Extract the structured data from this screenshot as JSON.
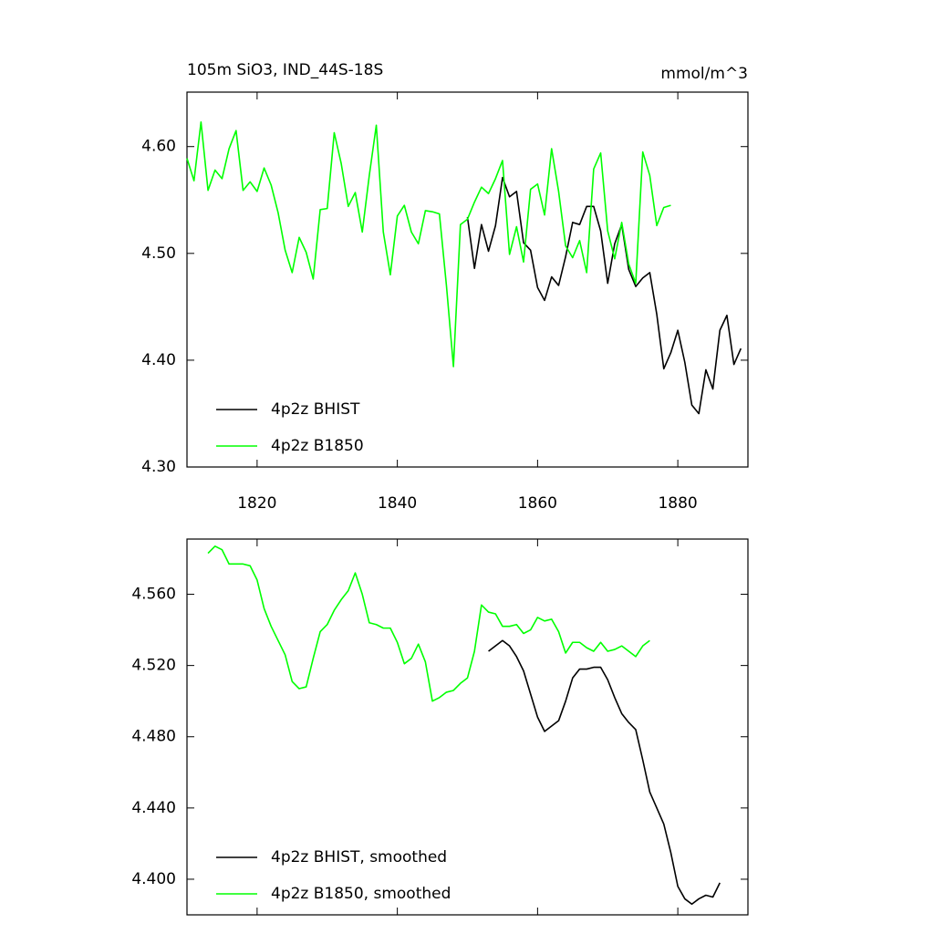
{
  "chart_data": [
    {
      "type": "line",
      "title": "105m SiO3, IND_44S-18S",
      "units": "mmol/m^3",
      "x": [
        1810,
        1811,
        1812,
        1813,
        1814,
        1815,
        1816,
        1817,
        1818,
        1819,
        1820,
        1821,
        1822,
        1823,
        1824,
        1825,
        1826,
        1827,
        1828,
        1829,
        1830,
        1831,
        1832,
        1833,
        1834,
        1835,
        1836,
        1837,
        1838,
        1839,
        1840,
        1841,
        1842,
        1843,
        1844,
        1845,
        1846,
        1847,
        1848,
        1849,
        1850,
        1851,
        1852,
        1853,
        1854,
        1855,
        1856,
        1857,
        1858,
        1859,
        1860,
        1861,
        1862,
        1863,
        1864,
        1865,
        1866,
        1867,
        1868,
        1869,
        1870,
        1871,
        1872,
        1873,
        1874,
        1875,
        1876,
        1877,
        1878,
        1879,
        1880,
        1881,
        1882,
        1883,
        1884,
        1885,
        1886,
        1887,
        1888,
        1889
      ],
      "series": [
        {
          "name": "4p2z BHIST",
          "color": "#000000",
          "values": [
            null,
            null,
            null,
            null,
            null,
            null,
            null,
            null,
            null,
            null,
            null,
            null,
            null,
            null,
            null,
            null,
            null,
            null,
            null,
            null,
            null,
            null,
            null,
            null,
            null,
            null,
            null,
            null,
            null,
            null,
            null,
            null,
            null,
            null,
            null,
            null,
            null,
            null,
            null,
            null,
            4.534,
            4.486,
            4.527,
            4.502,
            4.526,
            4.571,
            4.553,
            4.558,
            4.51,
            4.503,
            4.468,
            4.456,
            4.478,
            4.47,
            4.497,
            4.529,
            4.527,
            4.544,
            4.544,
            4.521,
            4.472,
            4.509,
            4.527,
            4.485,
            4.469,
            4.477,
            4.482,
            4.443,
            4.392,
            4.407,
            4.428,
            4.398,
            4.358,
            4.35,
            4.391,
            4.373,
            4.428,
            4.442,
            4.396,
            4.411
          ]
        },
        {
          "name": "4p2z B1850",
          "color": "#00ff00",
          "values": [
            4.589,
            4.568,
            4.623,
            4.559,
            4.578,
            4.57,
            4.598,
            4.615,
            4.559,
            4.567,
            4.558,
            4.58,
            4.564,
            4.538,
            4.503,
            4.482,
            4.515,
            4.501,
            4.476,
            4.541,
            4.542,
            4.613,
            4.584,
            4.544,
            4.557,
            4.52,
            4.573,
            4.62,
            4.52,
            4.48,
            4.535,
            4.545,
            4.52,
            4.509,
            4.54,
            4.539,
            4.537,
            4.47,
            4.394,
            4.527,
            4.532,
            4.548,
            4.562,
            4.556,
            4.57,
            4.587,
            4.499,
            4.525,
            4.492,
            4.56,
            4.565,
            4.536,
            4.598,
            4.558,
            4.507,
            4.496,
            4.512,
            4.482,
            4.579,
            4.594,
            4.521,
            4.495,
            4.529,
            4.49,
            4.472,
            4.595,
            4.573,
            4.526,
            4.543,
            4.545,
            null,
            null,
            null,
            null,
            null,
            null,
            null,
            null,
            null,
            null
          ]
        }
      ],
      "xlim": [
        1810,
        1890
      ],
      "xticks": [
        1820,
        1840,
        1860,
        1880
      ],
      "ylim": [
        4.3,
        4.651
      ],
      "yticks": [
        {
          "value": 4.3,
          "label": "4.30"
        },
        {
          "value": 4.4,
          "label": "4.40"
        },
        {
          "value": 4.5,
          "label": "4.50"
        },
        {
          "value": 4.6,
          "label": "4.60"
        }
      ],
      "legend": "lower left"
    },
    {
      "type": "line",
      "x": [
        1813,
        1814,
        1815,
        1816,
        1817,
        1818,
        1819,
        1820,
        1821,
        1822,
        1823,
        1824,
        1825,
        1826,
        1827,
        1828,
        1829,
        1830,
        1831,
        1832,
        1833,
        1834,
        1835,
        1836,
        1837,
        1838,
        1839,
        1840,
        1841,
        1842,
        1843,
        1844,
        1845,
        1846,
        1847,
        1848,
        1849,
        1850,
        1851,
        1852,
        1853,
        1854,
        1855,
        1856,
        1857,
        1858,
        1859,
        1860,
        1861,
        1862,
        1863,
        1864,
        1865,
        1866,
        1867,
        1868,
        1869,
        1870,
        1871,
        1872,
        1873,
        1874,
        1875,
        1876,
        1877,
        1878,
        1879,
        1880,
        1881,
        1882,
        1883,
        1884,
        1885,
        1886
      ],
      "series": [
        {
          "name": "4p2z BHIST, smoothed",
          "color": "#000000",
          "values": [
            null,
            null,
            null,
            null,
            null,
            null,
            null,
            null,
            null,
            null,
            null,
            null,
            null,
            null,
            null,
            null,
            null,
            null,
            null,
            null,
            null,
            null,
            null,
            null,
            null,
            null,
            null,
            null,
            null,
            null,
            null,
            null,
            null,
            null,
            null,
            null,
            null,
            null,
            null,
            null,
            4.528,
            4.531,
            4.534,
            4.531,
            4.525,
            4.517,
            4.504,
            4.491,
            4.483,
            4.486,
            4.489,
            4.5,
            4.513,
            4.518,
            4.518,
            4.519,
            4.519,
            4.512,
            4.502,
            4.493,
            4.488,
            4.484,
            4.467,
            4.449,
            4.44,
            4.431,
            4.415,
            4.396,
            4.389,
            4.386,
            4.389,
            4.391,
            4.39,
            4.398
          ]
        },
        {
          "name": "4p2z B1850, smoothed",
          "color": "#00ff00",
          "values": [
            4.583,
            4.587,
            4.585,
            4.577,
            4.577,
            4.577,
            4.576,
            4.568,
            4.552,
            4.542,
            4.534,
            4.526,
            4.511,
            4.507,
            4.508,
            4.524,
            4.539,
            4.543,
            4.551,
            4.557,
            4.562,
            4.572,
            4.56,
            4.544,
            4.543,
            4.541,
            4.541,
            4.533,
            4.521,
            4.524,
            4.532,
            4.522,
            4.5,
            4.502,
            4.505,
            4.506,
            4.51,
            4.513,
            4.528,
            4.554,
            4.55,
            4.549,
            4.542,
            4.542,
            4.543,
            4.538,
            4.54,
            4.547,
            4.545,
            4.546,
            4.539,
            4.527,
            4.533,
            4.533,
            4.53,
            4.528,
            4.533,
            4.528,
            4.529,
            4.531,
            4.528,
            4.525,
            4.531,
            4.534,
            null,
            null,
            null,
            null,
            null,
            null,
            null,
            null,
            null,
            null
          ]
        }
      ],
      "xlim": [
        1810,
        1890
      ],
      "xticks": [
        1820,
        1840,
        1860,
        1880
      ],
      "show_xtick_labels": false,
      "ylim": [
        4.38,
        4.591
      ],
      "yticks": [
        {
          "value": 4.4,
          "label": "4.400"
        },
        {
          "value": 4.44,
          "label": "4.440"
        },
        {
          "value": 4.48,
          "label": "4.480"
        },
        {
          "value": 4.52,
          "label": "4.520"
        },
        {
          "value": 4.56,
          "label": "4.560"
        }
      ],
      "legend": "lower left"
    }
  ]
}
